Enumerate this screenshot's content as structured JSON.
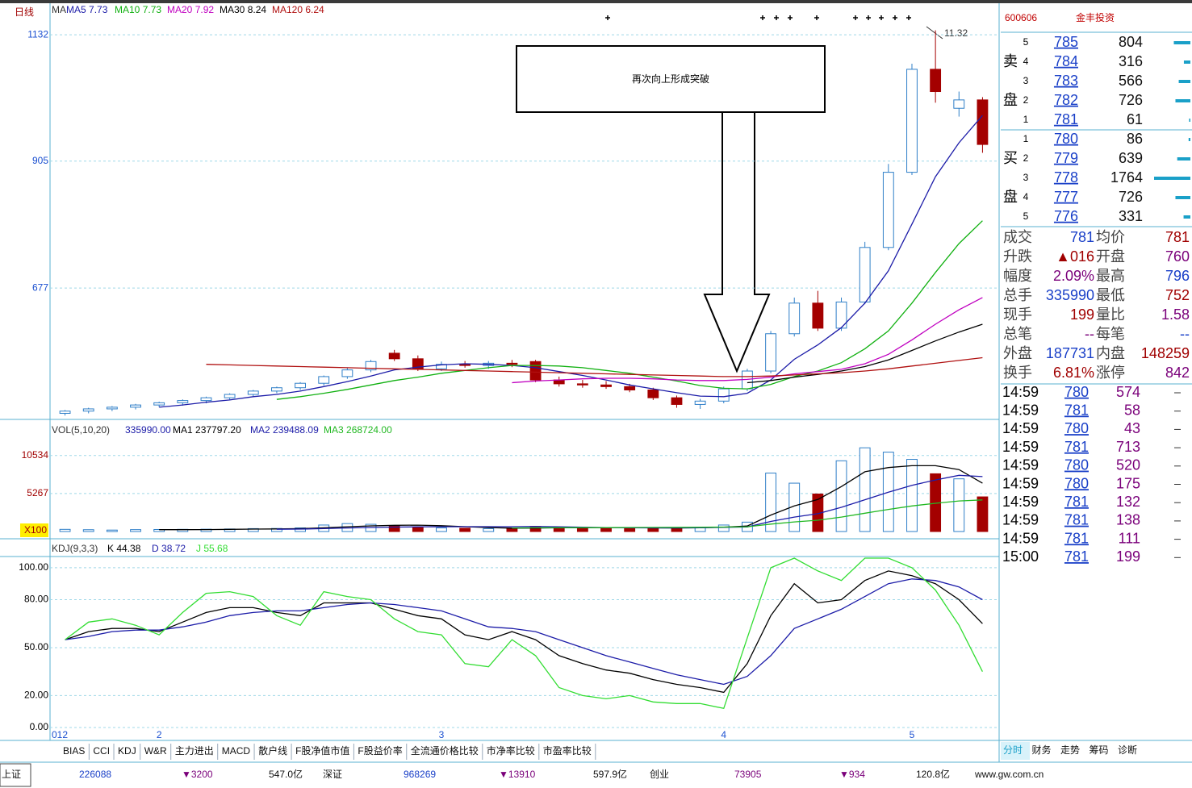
{
  "chart_data": [
    {
      "type": "candlestick",
      "title": "日线",
      "ma_label": "MA",
      "annotation": "再次向上形成突破",
      "high_label": "11.32",
      "open": [
        452,
        456,
        460,
        463,
        467,
        471,
        475,
        480,
        486,
        492,
        498,
        506,
        518,
        530,
        560,
        550,
        532,
        540,
        538,
        542,
        545,
        512,
        505,
        503,
        500,
        494,
        480,
        468,
        474,
        496,
        528,
        595,
        650,
        605,
        652,
        750,
        885,
        1070,
        1000,
        1015
      ],
      "high": [
        458,
        462,
        465,
        469,
        473,
        477,
        482,
        488,
        494,
        500,
        508,
        520,
        534,
        548,
        566,
        556,
        545,
        546,
        546,
        548,
        548,
        518,
        512,
        510,
        505,
        498,
        484,
        478,
        500,
        532,
        600,
        660,
        672,
        660,
        760,
        900,
        1080,
        1140,
        1030,
        1020
      ],
      "low": [
        448,
        452,
        456,
        459,
        463,
        466,
        470,
        476,
        482,
        488,
        494,
        502,
        514,
        526,
        546,
        528,
        528,
        534,
        532,
        535,
        508,
        500,
        498,
        496,
        490,
        476,
        462,
        460,
        470,
        492,
        524,
        590,
        600,
        600,
        648,
        745,
        880,
        1010,
        985,
        920
      ],
      "close": [
        456,
        460,
        463,
        467,
        471,
        475,
        480,
        486,
        492,
        498,
        506,
        518,
        530,
        545,
        550,
        532,
        540,
        538,
        542,
        540,
        512,
        505,
        503,
        500,
        494,
        480,
        468,
        474,
        496,
        528,
        595,
        650,
        605,
        652,
        750,
        885,
        1070,
        1030,
        1015,
        935
      ],
      "up_color": "#2f7fc8",
      "down_color": "#a40000",
      "series": [
        {
          "name": "MA5",
          "legend_value": 7.73,
          "color": "#1c1ca8",
          "values": [
            null,
            null,
            null,
            null,
            463,
            467,
            472,
            476,
            482,
            486,
            492,
            500,
            509,
            519,
            530,
            535,
            539,
            541,
            540,
            538,
            534,
            527,
            520,
            512,
            503,
            496,
            489,
            483,
            482,
            488,
            512,
            549,
            575,
            606,
            650,
            708,
            792,
            877,
            938,
            987
          ]
        },
        {
          "name": "MA10",
          "legend_value": 7.73,
          "color": "#10b010",
          "values": [
            null,
            null,
            null,
            null,
            null,
            null,
            null,
            null,
            null,
            477,
            482,
            488,
            495,
            503,
            511,
            517,
            524,
            529,
            534,
            538,
            538,
            537,
            534,
            529,
            524,
            517,
            510,
            502,
            497,
            496,
            504,
            518,
            528,
            543,
            568,
            600,
            650,
            705,
            757,
            798
          ]
        },
        {
          "name": "MA20",
          "legend_value": 7.92,
          "color": "#c000c0",
          "values": [
            null,
            null,
            null,
            null,
            null,
            null,
            null,
            null,
            null,
            null,
            null,
            null,
            null,
            null,
            null,
            null,
            null,
            null,
            null,
            507,
            510,
            512,
            514,
            515,
            515,
            514,
            512,
            511,
            511,
            513,
            517,
            523,
            527,
            531,
            541,
            558,
            584,
            612,
            638,
            660
          ]
        },
        {
          "name": "MA30",
          "legend_value": 8.24,
          "color": "#000000",
          "values": [
            null,
            null,
            null,
            null,
            null,
            null,
            null,
            null,
            null,
            null,
            null,
            null,
            null,
            null,
            null,
            null,
            null,
            null,
            null,
            null,
            null,
            null,
            null,
            null,
            null,
            null,
            null,
            null,
            null,
            507,
            511,
            517,
            522,
            528,
            536,
            548,
            565,
            582,
            598,
            612
          ]
        },
        {
          "name": "MA120",
          "legend_value": 6.24,
          "color": "#b01010",
          "values": [
            null,
            null,
            null,
            null,
            null,
            null,
            540,
            539,
            538,
            537,
            536,
            535,
            534,
            533,
            532,
            531,
            530,
            529,
            528,
            527,
            526,
            525,
            524,
            523,
            522,
            521,
            520,
            519,
            518,
            518,
            519,
            521,
            523,
            525,
            528,
            532,
            537,
            542,
            547,
            552
          ]
        }
      ],
      "ylim": [
        444,
        1151
      ],
      "yticks": [
        677,
        905,
        1132
      ],
      "grid": true
    },
    {
      "type": "volume",
      "title": "VOL(5,10,20)",
      "total": "335990.00",
      "unit": "X100",
      "values": [
        300,
        250,
        200,
        260,
        280,
        300,
        320,
        350,
        400,
        420,
        500,
        900,
        1100,
        1000,
        800,
        600,
        500,
        450,
        400,
        420,
        700,
        600,
        500,
        450,
        480,
        500,
        520,
        600,
        900,
        1300,
        8100,
        6700,
        5200,
        9800,
        11600,
        11000,
        10000,
        8000,
        7300,
        4800
      ],
      "series": [
        {
          "name": "MA1",
          "legend_value": "237797.20",
          "color": "#000000",
          "values": [
            null,
            null,
            null,
            null,
            258,
            262,
            272,
            302,
            330,
            358,
            398,
            514,
            664,
            784,
            860,
            880,
            800,
            670,
            550,
            474,
            484,
            514,
            534,
            534,
            546,
            506,
            490,
            510,
            600,
            764,
            2284,
            3540,
            4440,
            6220,
            8280,
            8860,
            9120,
            9120,
            8580,
            6700
          ]
        },
        {
          "name": "MA2",
          "legend_value": "239488.09",
          "color": "#1c1ca8",
          "values": [
            null,
            null,
            null,
            null,
            null,
            null,
            null,
            null,
            null,
            308,
            333,
            398,
            488,
            562,
            614,
            644,
            662,
            672,
            672,
            672,
            692,
            662,
            602,
            548,
            516,
            506,
            508,
            523,
            573,
            641,
            1395,
            2001,
            2472,
            3357,
            4405,
            5442,
            6409,
            7145,
            7790,
            7610
          ]
        },
        {
          "name": "MA3",
          "legend_value": "268724.00",
          "color": "#22b822",
          "values": [
            null,
            null,
            null,
            null,
            null,
            null,
            null,
            null,
            null,
            null,
            null,
            null,
            null,
            null,
            null,
            null,
            null,
            null,
            null,
            490,
            510,
            527,
            542,
            551,
            560,
            570,
            580,
            592,
            618,
            662,
            1028,
            1333,
            1563,
            1995,
            2540,
            3066,
            3540,
            3910,
            4236,
            4380
          ]
        }
      ],
      "ylim": [
        0,
        13300
      ],
      "yticks": [
        5267,
        10534
      ],
      "grid": true
    },
    {
      "type": "kdj",
      "title": "KDJ(9,3,3)",
      "categories": [
        "012",
        null,
        null,
        null,
        "2",
        null,
        null,
        null,
        null,
        null,
        null,
        null,
        null,
        null,
        null,
        null,
        "3",
        null,
        null,
        null,
        null,
        null,
        null,
        null,
        null,
        null,
        null,
        null,
        "4",
        null,
        null,
        null,
        null,
        null,
        null,
        null,
        "5",
        null,
        null,
        null
      ],
      "series": [
        {
          "name": "K",
          "legend_value": 44.38,
          "color": "#000000",
          "values": [
            55,
            60,
            62,
            62,
            60,
            66,
            72,
            75,
            75,
            72,
            70,
            78,
            78,
            78,
            74,
            70,
            68,
            58,
            55,
            60,
            55,
            45,
            40,
            36,
            34,
            30,
            27,
            25,
            22,
            40,
            70,
            90,
            78,
            80,
            92,
            98,
            95,
            90,
            80,
            65
          ]
        },
        {
          "name": "D",
          "legend_value": 38.72,
          "color": "#1c1ca8",
          "values": [
            55,
            57,
            60,
            61,
            61,
            63,
            66,
            70,
            72,
            73,
            73,
            75,
            77,
            78,
            77,
            75,
            73,
            68,
            63,
            62,
            60,
            55,
            50,
            45,
            41,
            37,
            33,
            30,
            27,
            32,
            45,
            62,
            68,
            74,
            82,
            90,
            93,
            92,
            88,
            80
          ]
        },
        {
          "name": "J",
          "legend_value": 55.68,
          "color": "#33dd33",
          "values": [
            55,
            66,
            68,
            64,
            58,
            72,
            84,
            85,
            82,
            70,
            64,
            85,
            82,
            80,
            68,
            60,
            58,
            40,
            38,
            55,
            45,
            25,
            20,
            18,
            20,
            16,
            15,
            15,
            12,
            56,
            100,
            106,
            98,
            92,
            106,
            106,
            100,
            86,
            64,
            35
          ]
        }
      ],
      "ylim": [
        -1.5,
        106
      ],
      "yticks": [
        {
          "value": 0,
          "label": "0.00"
        },
        {
          "value": 20,
          "label": "20.00"
        },
        {
          "value": 50,
          "label": "50.00"
        },
        {
          "value": 80,
          "label": "80.00"
        },
        {
          "value": 100,
          "label": "100.00"
        }
      ],
      "grid": true
    }
  ],
  "quote": {
    "code": "600606",
    "name": "金丰投资",
    "sell_label": [
      "卖",
      "盘"
    ],
    "buy_label": [
      "买",
      "盘"
    ],
    "sell": [
      {
        "level": 5,
        "price": 785,
        "volume": 804
      },
      {
        "level": 4,
        "price": 784,
        "volume": 316
      },
      {
        "level": 3,
        "price": 783,
        "volume": 566
      },
      {
        "level": 2,
        "price": 782,
        "volume": 726
      },
      {
        "level": 1,
        "price": 781,
        "volume": 61
      }
    ],
    "buy": [
      {
        "level": 1,
        "price": 780,
        "volume": 86
      },
      {
        "level": 2,
        "price": 779,
        "volume": 639
      },
      {
        "level": 3,
        "price": 778,
        "volume": 1764
      },
      {
        "level": 4,
        "price": 777,
        "volume": 726
      },
      {
        "level": 5,
        "price": 776,
        "volume": 331
      }
    ],
    "stats": [
      [
        "成交",
        781,
        "均价",
        781
      ],
      [
        "升跌",
        "▲016",
        "开盘",
        760
      ],
      [
        "幅度",
        "2.09%",
        "最高",
        796
      ],
      [
        "总手",
        335990,
        "最低",
        752
      ],
      [
        "现手",
        199,
        "量比",
        1.58
      ],
      [
        "总笔",
        "--",
        "每笔",
        "--"
      ],
      [
        "外盘",
        187731,
        "内盘",
        148259
      ],
      [
        "换手",
        "6.81%",
        "涨停",
        842
      ]
    ],
    "ticks": [
      {
        "time": "14:59",
        "price": 780,
        "volume": 574
      },
      {
        "time": "14:59",
        "price": 781,
        "volume": 58
      },
      {
        "time": "14:59",
        "price": 780,
        "volume": 43
      },
      {
        "time": "14:59",
        "price": 781,
        "volume": 713
      },
      {
        "time": "14:59",
        "price": 780,
        "volume": 520
      },
      {
        "time": "14:59",
        "price": 780,
        "volume": 175
      },
      {
        "time": "14:59",
        "price": 781,
        "volume": 132
      },
      {
        "time": "14:59",
        "price": 781,
        "volume": 138
      },
      {
        "time": "14:59",
        "price": 781,
        "volume": 111
      },
      {
        "time": "15:00",
        "price": 781,
        "volume": 199
      }
    ]
  },
  "tabs": [
    "BIAS",
    "CCI",
    "KDJ",
    "W&R",
    "主力进出",
    "MACD",
    "散户线",
    "F股净值市值",
    "F股益价率",
    "全流通价格比较",
    "市净率比较",
    "市盈率比较"
  ],
  "side_tabs": [
    "分时",
    "财务",
    "走势",
    "筹码",
    "诊断"
  ],
  "status": [
    "上证",
    "226088",
    "▼3200",
    "547.0亿",
    "深证",
    "968269",
    "▼13910",
    "597.9亿",
    "创业",
    "73905",
    "▼934",
    "120.8亿",
    "www.gw.com.cn"
  ]
}
